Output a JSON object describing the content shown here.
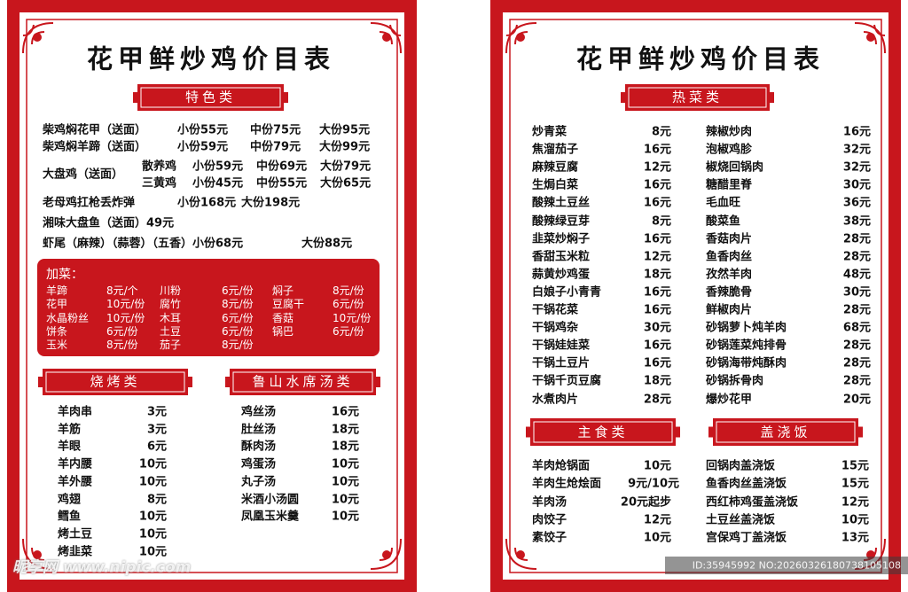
{
  "left": {
    "title": "花甲鲜炒鸡价目表",
    "specialty": {
      "heading": "特色类",
      "rows": [
        [
          "柴鸡焖花甲（送面）",
          "小份55元",
          "中份75元",
          "大份95元"
        ],
        [
          "柴鸡焖羊蹄（送面）",
          "小份59元",
          "中份79元",
          "大份99元"
        ],
        [
          "大盘鸡（送面）",
          "散养鸡",
          "小份59元",
          "中份69元",
          "大份79元"
        ],
        [
          "三黄鸡",
          "小份45元",
          "中份55元",
          "大份65元"
        ],
        [
          "老母鸡扛枪丢炸弹",
          "小份168元",
          "大份198元"
        ],
        [
          "湘味大盘鱼（送面）49元"
        ],
        [
          "虾尾（麻辣）（蒜蓉）（五香）小份68元",
          "大份88元"
        ]
      ]
    },
    "extras": {
      "heading": "加菜：",
      "items": [
        [
          "羊蹄",
          "8元/个"
        ],
        [
          "川粉",
          "6元/份"
        ],
        [
          "焖子",
          "8元/份"
        ],
        [
          "花甲",
          "10元/份"
        ],
        [
          "腐竹",
          "8元/份"
        ],
        [
          "豆腐干",
          "6元/份"
        ],
        [
          "水晶粉丝",
          "10元/份"
        ],
        [
          "木耳",
          "6元/份"
        ],
        [
          "香菇",
          "10元/份"
        ],
        [
          "饼条",
          "6元/份"
        ],
        [
          "土豆",
          "6元/份"
        ],
        [
          "锅巴",
          "6元/份"
        ],
        [
          "玉米",
          "8元/份"
        ],
        [
          "茄子",
          "8元/份"
        ]
      ]
    },
    "bbq": {
      "heading": "烧烤类",
      "items": [
        [
          "羊肉串",
          "3元"
        ],
        [
          "羊筋",
          "3元"
        ],
        [
          "羊眼",
          "6元"
        ],
        [
          "羊内腰",
          "10元"
        ],
        [
          "羊外腰",
          "10元"
        ],
        [
          "鸡翅",
          "8元"
        ],
        [
          "鳕鱼",
          "10元"
        ],
        [
          "烤土豆",
          "10元"
        ],
        [
          "烤韭菜",
          "10元"
        ]
      ]
    },
    "soup": {
      "heading": "鲁山水席汤类",
      "items": [
        [
          "鸡丝汤",
          "16元"
        ],
        [
          "肚丝汤",
          "18元"
        ],
        [
          "酥肉汤",
          "18元"
        ],
        [
          "鸡蛋汤",
          "10元"
        ],
        [
          "丸子汤",
          "10元"
        ],
        [
          "米酒小汤圆",
          "10元"
        ],
        [
          "凤凰玉米羹",
          "10元"
        ]
      ]
    }
  },
  "right": {
    "title": "花甲鲜炒鸡价目表",
    "hot": {
      "heading": "热菜类",
      "columns": [
        [
          [
            "炒青菜",
            "8元"
          ],
          [
            "焦溜茄子",
            "16元"
          ],
          [
            "麻辣豆腐",
            "12元"
          ],
          [
            "生焗白菜",
            "16元"
          ],
          [
            "酸辣土豆丝",
            "16元"
          ],
          [
            "酸辣绿豆芽",
            "8元"
          ],
          [
            "韭菜炒焖子",
            "16元"
          ],
          [
            "香甜玉米粒",
            "12元"
          ],
          [
            "蒜黄炒鸡蛋",
            "18元"
          ],
          [
            "白娘子小青青",
            "16元"
          ],
          [
            "干锅花菜",
            "16元"
          ],
          [
            "干锅鸡杂",
            "30元"
          ],
          [
            "干锅娃娃菜",
            "16元"
          ],
          [
            "干锅土豆片",
            "16元"
          ],
          [
            "干锅千页豆腐",
            "18元"
          ],
          [
            "水煮肉片",
            "28元"
          ]
        ],
        [
          [
            "辣椒炒肉",
            "16元"
          ],
          [
            "泡椒鸡胗",
            "32元"
          ],
          [
            "椒烧回锅肉",
            "32元"
          ],
          [
            "糖醋里脊",
            "30元"
          ],
          [
            "毛血旺",
            "36元"
          ],
          [
            "酸菜鱼",
            "38元"
          ],
          [
            "香菇肉片",
            "28元"
          ],
          [
            "鱼香肉丝",
            "28元"
          ],
          [
            "孜然羊肉",
            "48元"
          ],
          [
            "香辣脆骨",
            "30元"
          ],
          [
            "鲜椒肉片",
            "28元"
          ],
          [
            "砂锅萝卜炖羊肉",
            "68元"
          ],
          [
            "砂锅莲菜炖排骨",
            "28元"
          ],
          [
            "砂锅海带炖酥肉",
            "28元"
          ],
          [
            "砂锅拆骨肉",
            "28元"
          ],
          [
            "爆炒花甲",
            "20元"
          ]
        ]
      ]
    },
    "staples": {
      "heading": "主食类",
      "items": [
        [
          "羊肉炝锅面",
          "10元"
        ],
        [
          "羊肉生炝烩面",
          "9元/10元"
        ],
        [
          "羊肉汤",
          "20元起步"
        ],
        [
          "肉饺子",
          "12元"
        ],
        [
          "素饺子",
          "10元"
        ]
      ]
    },
    "rice": {
      "heading": "盖浇饭",
      "items": [
        [
          "回锅肉盖浇饭",
          "15元"
        ],
        [
          "鱼香肉丝盖浇饭",
          "15元"
        ],
        [
          "西红柿鸡蛋盖浇饭",
          "12元"
        ],
        [
          "土豆丝盖浇饭",
          "10元"
        ],
        [
          "宫保鸡丁盖浇饭",
          "13元"
        ]
      ]
    }
  },
  "watermark": {
    "site": "昵享网 www.nipic.com",
    "id": "ID:35945992 NO:20260326180738105108"
  }
}
